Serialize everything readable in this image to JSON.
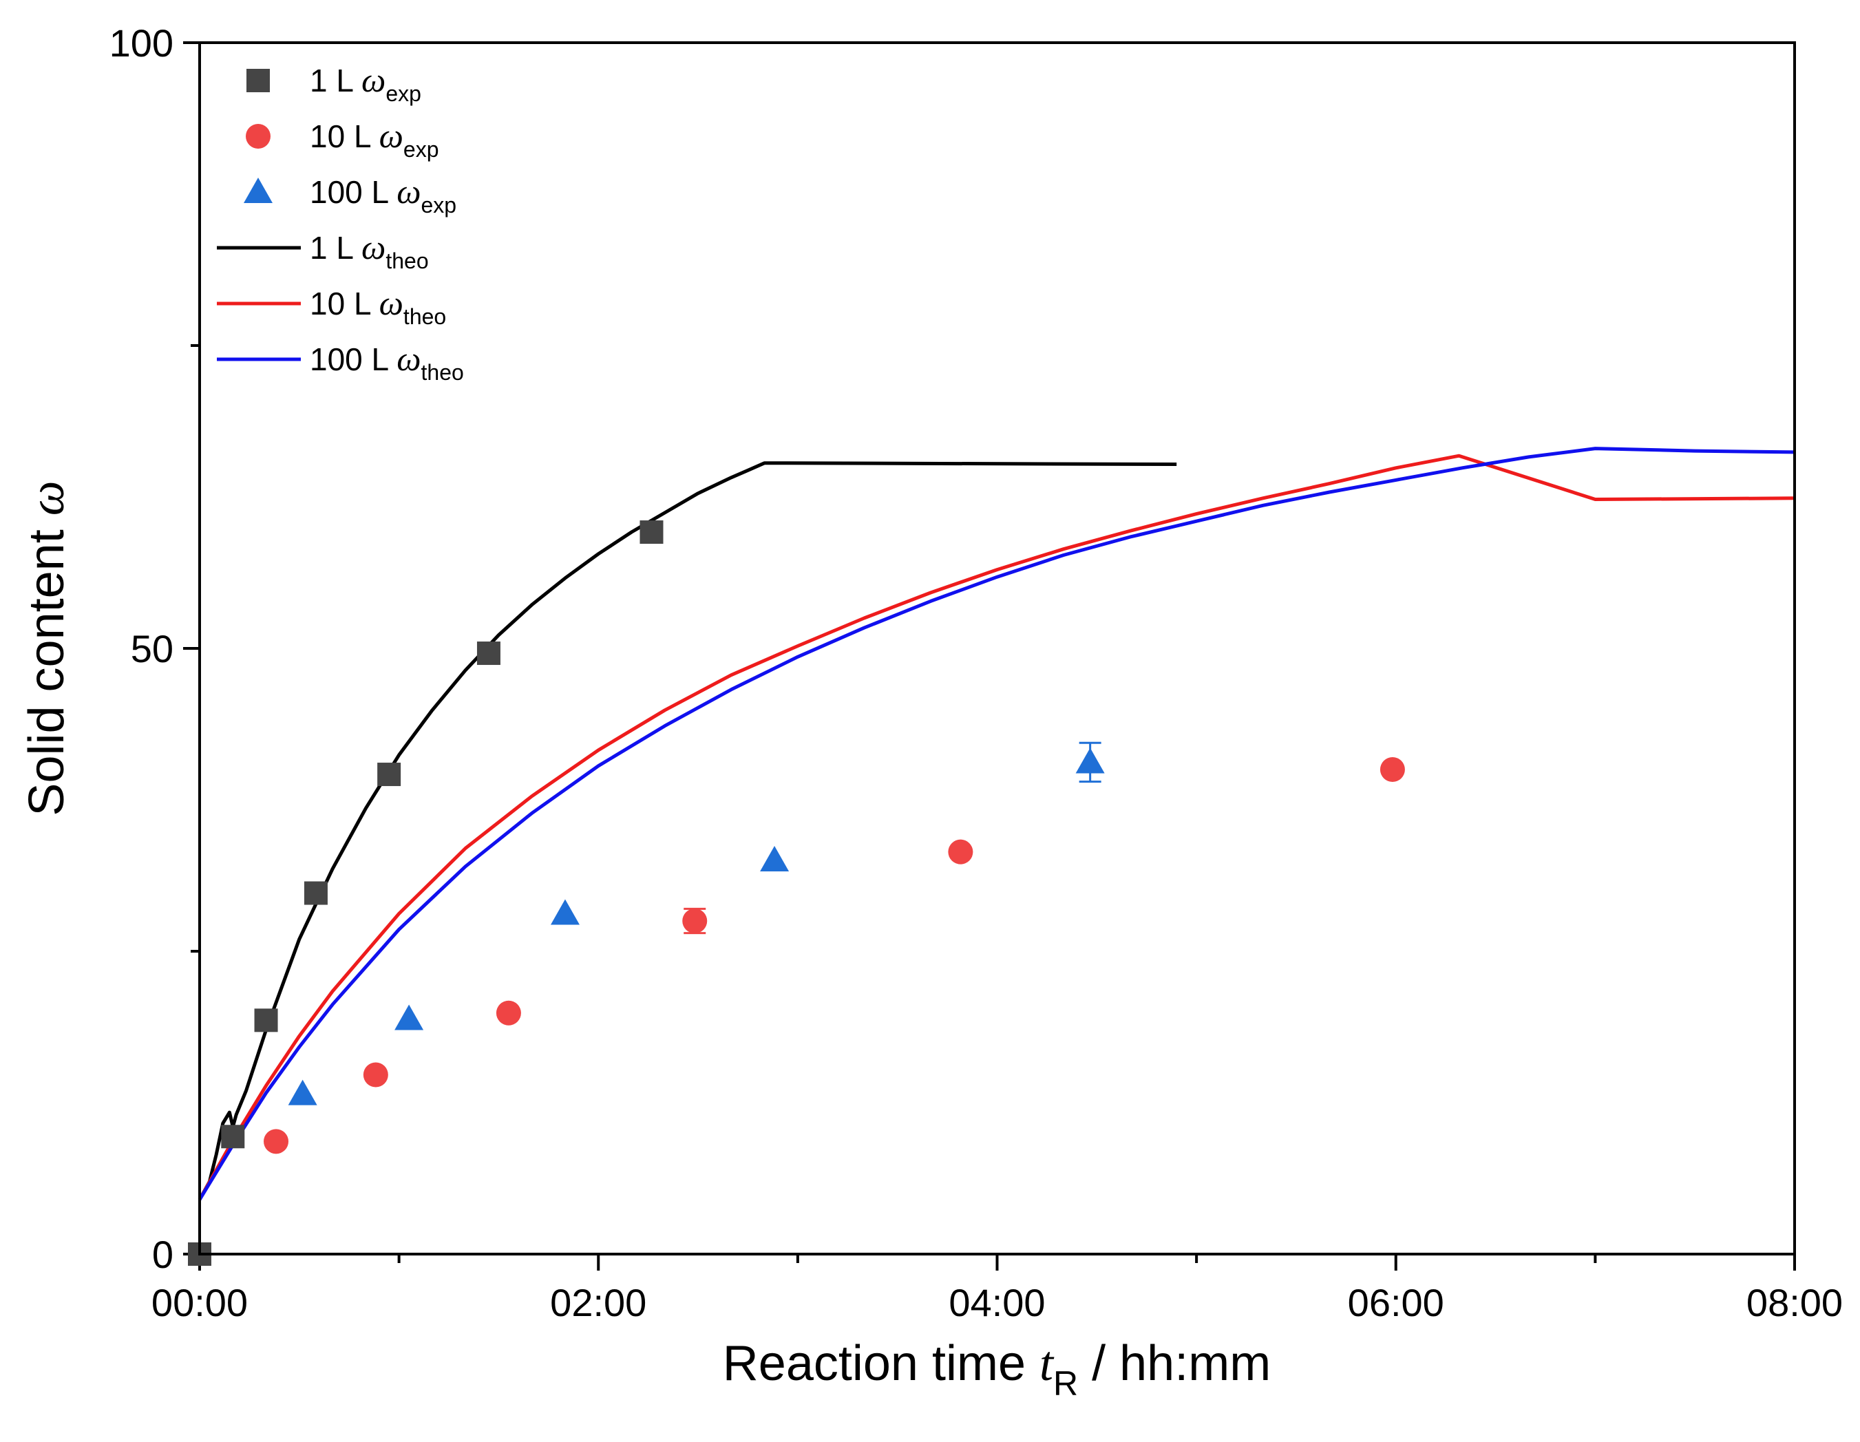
{
  "chart_data": {
    "type": "scatter",
    "xlabel_text": "Reaction time ",
    "xlabel_var": "t",
    "xlabel_sub": "R",
    "xlabel_unit": " / hh:mm",
    "ylabel_text": "Solid content ",
    "ylabel_var": "ω",
    "xlim": [
      0,
      480
    ],
    "ylim": [
      0,
      100
    ],
    "x_ticks": [
      {
        "value": 0,
        "label": "00:00"
      },
      {
        "value": 120,
        "label": "02:00"
      },
      {
        "value": 240,
        "label": "04:00"
      },
      {
        "value": 360,
        "label": "06:00"
      },
      {
        "value": 480,
        "label": "08:00"
      }
    ],
    "x_minor_ticks": [
      60,
      180,
      300,
      420
    ],
    "y_ticks": [
      {
        "value": 0,
        "label": "0"
      },
      {
        "value": 50,
        "label": "50"
      },
      {
        "value": 100,
        "label": "100"
      }
    ],
    "y_minor_ticks": [
      25,
      75
    ],
    "legend_position": "top-left",
    "series": [
      {
        "name": "1 L ω_exp",
        "legend_prefix": "1 L ",
        "legend_sym": "ω",
        "legend_sub": "exp",
        "kind": "scatter",
        "marker": "square",
        "color": "#454545",
        "points": [
          [
            0,
            0
          ],
          [
            10,
            9.7
          ],
          [
            20,
            19.3
          ],
          [
            35,
            29.8
          ],
          [
            57,
            39.6
          ],
          [
            87,
            49.6
          ],
          [
            136,
            59.6
          ]
        ],
        "errors": []
      },
      {
        "name": "10 L ω_exp",
        "legend_prefix": "10 L ",
        "legend_sym": "ω",
        "legend_sub": "exp",
        "kind": "scatter",
        "marker": "circle",
        "color": "#ef4444",
        "points": [
          [
            23,
            9.3
          ],
          [
            53,
            14.8
          ],
          [
            93,
            19.9
          ],
          [
            149,
            27.5
          ],
          [
            229,
            33.2
          ],
          [
            359,
            40.0
          ]
        ],
        "errors": [
          [
            149,
            1.0
          ]
        ]
      },
      {
        "name": "100 L ω_exp",
        "legend_prefix": "100 L ",
        "legend_sym": "ω",
        "legend_sub": "exp",
        "kind": "scatter",
        "marker": "triangle",
        "color": "#1f6fd6",
        "points": [
          [
            31,
            13.2
          ],
          [
            63,
            19.4
          ],
          [
            110,
            28.1
          ],
          [
            173,
            32.5
          ],
          [
            268,
            40.6
          ]
        ],
        "errors": [
          [
            268,
            1.6
          ]
        ]
      },
      {
        "name": "1 L ω_theo",
        "legend_prefix": "1 L ",
        "legend_sym": "ω",
        "legend_sub": "theo",
        "kind": "line",
        "color": "#000000",
        "points": [
          [
            0,
            4.5
          ],
          [
            3,
            6
          ],
          [
            5,
            8.2
          ],
          [
            7,
            10.8
          ],
          [
            9,
            11.7
          ],
          [
            10,
            10.5
          ],
          [
            11,
            11.5
          ],
          [
            14,
            13.5
          ],
          [
            20,
            18.5
          ],
          [
            30,
            26
          ],
          [
            40,
            31.8
          ],
          [
            50,
            36.8
          ],
          [
            60,
            41.2
          ],
          [
            70,
            44.9
          ],
          [
            80,
            48.2
          ],
          [
            90,
            51.1
          ],
          [
            100,
            53.6
          ],
          [
            110,
            55.8
          ],
          [
            120,
            57.8
          ],
          [
            130,
            59.6
          ],
          [
            140,
            61.2
          ],
          [
            150,
            62.8
          ],
          [
            160,
            64.1
          ],
          [
            165,
            64.7
          ],
          [
            170,
            65.3
          ],
          [
            294,
            65.2
          ]
        ]
      },
      {
        "name": "10 L ω_theo",
        "legend_prefix": "10 L ",
        "legend_sym": "ω",
        "legend_sub": "theo",
        "kind": "line",
        "color": "#ee1c1c",
        "points": [
          [
            0,
            4.5
          ],
          [
            10,
            9.4
          ],
          [
            20,
            13.9
          ],
          [
            30,
            18
          ],
          [
            40,
            21.7
          ],
          [
            60,
            28.1
          ],
          [
            80,
            33.5
          ],
          [
            100,
            37.8
          ],
          [
            120,
            41.6
          ],
          [
            140,
            44.9
          ],
          [
            160,
            47.8
          ],
          [
            180,
            50.2
          ],
          [
            200,
            52.5
          ],
          [
            220,
            54.6
          ],
          [
            240,
            56.5
          ],
          [
            260,
            58.2
          ],
          [
            280,
            59.7
          ],
          [
            300,
            61.1
          ],
          [
            320,
            62.4
          ],
          [
            340,
            63.6
          ],
          [
            360,
            64.9
          ],
          [
            379,
            65.9
          ],
          [
            420,
            62.3
          ],
          [
            480,
            62.4
          ]
        ]
      },
      {
        "name": "100 L ω_theo",
        "legend_prefix": "100 L ",
        "legend_sym": "ω",
        "legend_sub": "theo",
        "kind": "line",
        "color": "#1010ee",
        "points": [
          [
            0,
            4.5
          ],
          [
            10,
            9
          ],
          [
            20,
            13.3
          ],
          [
            30,
            17.1
          ],
          [
            40,
            20.6
          ],
          [
            60,
            26.8
          ],
          [
            80,
            32
          ],
          [
            100,
            36.4
          ],
          [
            120,
            40.3
          ],
          [
            140,
            43.6
          ],
          [
            160,
            46.6
          ],
          [
            180,
            49.3
          ],
          [
            200,
            51.7
          ],
          [
            220,
            53.9
          ],
          [
            240,
            55.9
          ],
          [
            260,
            57.7
          ],
          [
            280,
            59.2
          ],
          [
            300,
            60.5
          ],
          [
            320,
            61.8
          ],
          [
            340,
            62.9
          ],
          [
            360,
            63.9
          ],
          [
            380,
            64.9
          ],
          [
            400,
            65.8
          ],
          [
            420,
            66.5
          ],
          [
            450,
            66.3
          ],
          [
            480,
            66.2
          ]
        ]
      }
    ]
  }
}
